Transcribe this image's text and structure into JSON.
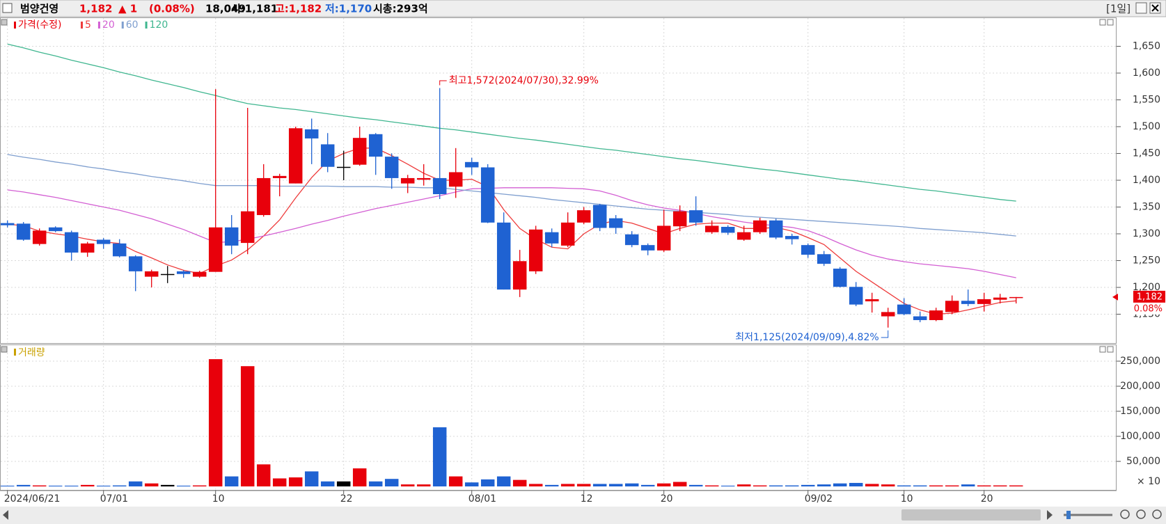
{
  "header": {
    "name": "범양건영",
    "price": "1,182",
    "change": "▲ 1",
    "change_pct": "(0.08%)",
    "volume": "18,049",
    "open": "시:1,181",
    "high": "고:1,182",
    "low": "저:1,170",
    "market_cap": "시총:293억",
    "period": "[1일]"
  },
  "chart_data": [
    {
      "type": "candlestick",
      "legend": "가격(수정)",
      "up_color": "#e8000b",
      "down_color": "#1f62d2",
      "flat_color": "#000000",
      "categories": [
        "2024/06/21",
        null,
        null,
        null,
        null,
        null,
        "07/01",
        null,
        null,
        null,
        null,
        null,
        null,
        "10",
        null,
        null,
        null,
        null,
        null,
        null,
        null,
        "22",
        null,
        null,
        null,
        null,
        null,
        null,
        null,
        "08/01",
        null,
        null,
        null,
        null,
        null,
        null,
        "12",
        null,
        null,
        null,
        null,
        "20",
        null,
        null,
        null,
        null,
        null,
        null,
        null,
        null,
        "09/02",
        null,
        null,
        null,
        null,
        null,
        "10",
        null,
        null,
        null,
        null,
        "20",
        null,
        null
      ],
      "open": [
        1320,
        1319,
        1281,
        1312,
        1303,
        1265,
        1289,
        1282,
        1258,
        1220,
        1225,
        1230,
        1220,
        1229,
        1312,
        1283,
        1335,
        1404,
        1394,
        1495,
        1467,
        1425,
        1429,
        1486,
        1444,
        1394,
        1401,
        1404,
        1388,
        1434,
        1424,
        1321,
        1196,
        1230,
        1303,
        1278,
        1321,
        1354,
        1329,
        1299,
        1279,
        1269,
        1314,
        1344,
        1303,
        1313,
        1289,
        1303,
        1325,
        1296,
        1279,
        1262,
        1235,
        1201,
        1174,
        1146,
        1168,
        1146,
        1139,
        1154,
        1175,
        1169,
        1177,
        1181
      ],
      "high": [
        1325,
        1322,
        1310,
        1314,
        1306,
        1285,
        1292,
        1290,
        1260,
        1233,
        1240,
        1232,
        1231,
        1570,
        1335,
        1535,
        1430,
        1412,
        1500,
        1515,
        1488,
        1455,
        1500,
        1488,
        1450,
        1410,
        1430,
        1572,
        1460,
        1442,
        1430,
        1340,
        1270,
        1315,
        1310,
        1340,
        1350,
        1356,
        1335,
        1305,
        1282,
        1345,
        1353,
        1370,
        1325,
        1316,
        1315,
        1330,
        1328,
        1300,
        1282,
        1268,
        1238,
        1210,
        1190,
        1162,
        1180,
        1155,
        1162,
        1185,
        1196,
        1190,
        1188,
        1182
      ],
      "low": [
        1312,
        1287,
        1278,
        1303,
        1250,
        1257,
        1272,
        1256,
        1193,
        1200,
        1208,
        1218,
        1218,
        1229,
        1262,
        1262,
        1332,
        1370,
        1394,
        1430,
        1415,
        1400,
        1427,
        1410,
        1384,
        1376,
        1390,
        1365,
        1367,
        1410,
        1320,
        1196,
        1182,
        1225,
        1275,
        1275,
        1318,
        1305,
        1300,
        1275,
        1260,
        1266,
        1305,
        1315,
        1300,
        1298,
        1287,
        1300,
        1290,
        1280,
        1255,
        1240,
        1200,
        1165,
        1153,
        1125,
        1148,
        1135,
        1137,
        1150,
        1165,
        1155,
        1170,
        1170
      ],
      "close": [
        1316,
        1289,
        1306,
        1305,
        1265,
        1282,
        1281,
        1258,
        1230,
        1230,
        1225,
        1225,
        1229,
        1312,
        1278,
        1342,
        1404,
        1408,
        1497,
        1478,
        1425,
        1425,
        1479,
        1444,
        1404,
        1404,
        1404,
        1374,
        1415,
        1424,
        1321,
        1196,
        1249,
        1308,
        1282,
        1321,
        1344,
        1311,
        1311,
        1279,
        1269,
        1315,
        1342,
        1321,
        1315,
        1302,
        1303,
        1325,
        1293,
        1290,
        1261,
        1244,
        1201,
        1168,
        1178,
        1154,
        1150,
        1139,
        1157,
        1175,
        1169,
        1178,
        1181,
        1182
      ],
      "series": [
        {
          "name": "5",
          "color": "#ee3b3b",
          "values": [
            1318,
            1315,
            1305,
            1300,
            1296,
            1290,
            1285,
            1282,
            1267,
            1255,
            1242,
            1232,
            1226,
            1240,
            1251,
            1270,
            1296,
            1326,
            1367,
            1405,
            1436,
            1450,
            1460,
            1460,
            1446,
            1430,
            1413,
            1400,
            1400,
            1402,
            1388,
            1345,
            1310,
            1290,
            1275,
            1272,
            1300,
            1318,
            1325,
            1320,
            1310,
            1300,
            1310,
            1318,
            1320,
            1320,
            1310,
            1310,
            1312,
            1305,
            1293,
            1280,
            1255,
            1230,
            1210,
            1190,
            1170,
            1158,
            1150,
            1152,
            1158,
            1165,
            1172,
            1175
          ]
        },
        {
          "name": "20",
          "color": "#d35fd3",
          "values": [
            1382,
            1378,
            1373,
            1368,
            1362,
            1356,
            1350,
            1344,
            1336,
            1328,
            1318,
            1308,
            1296,
            1284,
            1285,
            1290,
            1296,
            1303,
            1310,
            1318,
            1325,
            1333,
            1340,
            1347,
            1353,
            1359,
            1365,
            1371,
            1378,
            1384,
            1385,
            1386,
            1386,
            1386,
            1386,
            1385,
            1384,
            1380,
            1372,
            1362,
            1354,
            1348,
            1344,
            1338,
            1332,
            1327,
            1322,
            1318,
            1315,
            1312,
            1306,
            1295,
            1282,
            1270,
            1260,
            1253,
            1248,
            1244,
            1241,
            1238,
            1235,
            1230,
            1224,
            1218
          ]
        },
        {
          "name": "60",
          "color": "#7f9fcf",
          "values": [
            1448,
            1443,
            1439,
            1434,
            1430,
            1425,
            1421,
            1416,
            1412,
            1407,
            1403,
            1399,
            1394,
            1390,
            1390,
            1390,
            1390,
            1389,
            1389,
            1389,
            1389,
            1388,
            1388,
            1388,
            1387,
            1387,
            1386,
            1386,
            1383,
            1380,
            1377,
            1374,
            1371,
            1368,
            1364,
            1361,
            1358,
            1355,
            1352,
            1349,
            1346,
            1344,
            1342,
            1340,
            1338,
            1336,
            1333,
            1331,
            1329,
            1327,
            1325,
            1323,
            1321,
            1319,
            1317,
            1315,
            1313,
            1310,
            1308,
            1306,
            1304,
            1302,
            1299,
            1296
          ]
        },
        {
          "name": "120",
          "color": "#3fb68f",
          "values": [
            1654,
            1647,
            1639,
            1632,
            1624,
            1617,
            1610,
            1602,
            1595,
            1587,
            1580,
            1573,
            1565,
            1558,
            1550,
            1543,
            1539,
            1535,
            1532,
            1528,
            1524,
            1520,
            1516,
            1513,
            1509,
            1505,
            1501,
            1497,
            1494,
            1490,
            1486,
            1482,
            1478,
            1475,
            1471,
            1467,
            1463,
            1459,
            1456,
            1452,
            1448,
            1444,
            1440,
            1437,
            1433,
            1429,
            1425,
            1421,
            1418,
            1414,
            1410,
            1406,
            1402,
            1399,
            1395,
            1391,
            1387,
            1383,
            1380,
            1376,
            1372,
            1368,
            1364,
            1361
          ]
        }
      ],
      "ylim": [
        1100,
        1700
      ],
      "yticks": [
        {
          "value": 1150,
          "label": "1,150"
        },
        {
          "value": 1200,
          "label": "1,200"
        },
        {
          "value": 1250,
          "label": "1,250"
        },
        {
          "value": 1300,
          "label": "1,300"
        },
        {
          "value": 1350,
          "label": "1,350"
        },
        {
          "value": 1400,
          "label": "1,400"
        },
        {
          "value": 1450,
          "label": "1,450"
        },
        {
          "value": 1500,
          "label": "1,500"
        },
        {
          "value": 1550,
          "label": "1,550"
        },
        {
          "value": 1600,
          "label": "1,600"
        },
        {
          "value": 1650,
          "label": "1,650"
        }
      ],
      "grid": true,
      "annotations": {
        "high": "최고1,572(2024/07/30),32.99%",
        "low": "최저1,125(2024/09/09),4.82%"
      },
      "last_change": "0.08%"
    },
    {
      "type": "bar",
      "legend": "거래량",
      "legend_color": "#c9a100",
      "values": [
        1500,
        3000,
        2000,
        1500,
        1500,
        3000,
        1500,
        2000,
        10000,
        6000,
        3000,
        1500,
        2000,
        254000,
        20000,
        240000,
        44000,
        16000,
        18000,
        30000,
        10000,
        10000,
        36000,
        10000,
        15000,
        4000,
        4000,
        118000,
        20000,
        8000,
        14000,
        20000,
        13000,
        5000,
        3000,
        5000,
        5000,
        5000,
        5000,
        6000,
        3000,
        6000,
        9000,
        3000,
        2000,
        1500,
        4000,
        2000,
        2000,
        2000,
        3000,
        4000,
        6000,
        7000,
        5000,
        4000,
        2000,
        2000,
        2000,
        2000,
        4000,
        2000,
        2000,
        2000
      ],
      "ylim": [
        0,
        275000
      ],
      "yticks": [
        {
          "value": 50000,
          "label": "50,000"
        },
        {
          "value": 100000,
          "label": "100,000"
        },
        {
          "value": 150000,
          "label": "150,000"
        },
        {
          "value": 200000,
          "label": "200,000"
        },
        {
          "value": 250000,
          "label": "250,000"
        }
      ],
      "grid": true,
      "unit_label": "× 10"
    }
  ]
}
